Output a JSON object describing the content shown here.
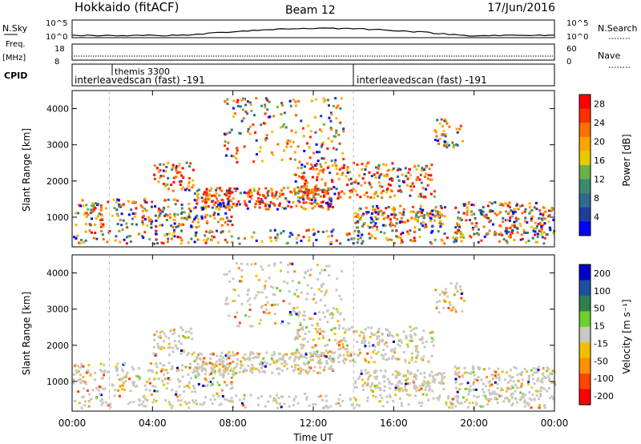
{
  "header": {
    "title": "Hokkaido (fitACF)",
    "beam": "Beam 12",
    "date": "17/Jun/2016"
  },
  "labels": {
    "nsky": "N.Sky",
    "nsearch": "N.Search",
    "freq": "Freq.",
    "freq_unit": "[MHz]",
    "nave": "Nave",
    "cpid": "CPID",
    "nsky_top": "10^5",
    "nsky_bottom": "10^0",
    "nsearch_top": "10^5",
    "nsearch_bottom": "10^0",
    "freq_top": "18",
    "freq_bottom": "8",
    "nave_top": "60",
    "nave_bottom": "0"
  },
  "cpid_segments": [
    {
      "start_hour": 0,
      "label": "interleavedscan (fast) -191"
    },
    {
      "start_hour": 1.85,
      "label": "themis 3300"
    },
    {
      "start_hour": 14.0,
      "label": "interleavedscan (fast) -191"
    }
  ],
  "colors": {
    "power": [
      "#0000ff",
      "#1f3f9f",
      "#2e6b8f",
      "#3d8a6a",
      "#6bb04a",
      "#e8c800",
      "#ffa500",
      "#ff7000",
      "#ff3000",
      "#ff0000"
    ],
    "velocity": [
      "#0000c8",
      "#1f4f9f",
      "#2f7f4f",
      "#6ccf2a",
      "#c8c8c0",
      "#f0c000",
      "#ff9000",
      "#ff4500",
      "#ff0000"
    ]
  },
  "chart_data": [
    {
      "type": "heatmap",
      "title": "Power",
      "xlabel": "Time UT",
      "ylabel": "Slant Range [km]",
      "xlim": [
        0,
        24
      ],
      "ylim": [
        180,
        4500
      ],
      "x_ticks": [
        "00:00",
        "04:00",
        "08:00",
        "12:00",
        "16:00",
        "20:00",
        "00:00"
      ],
      "y_ticks": [
        1000,
        2000,
        3000,
        4000
      ],
      "colorbar_label": "Power [dB]",
      "colorbar_ticks": [
        4,
        8,
        12,
        16,
        20,
        24,
        28
      ],
      "colorbar_range": [
        0,
        30
      ]
    },
    {
      "type": "heatmap",
      "title": "Velocity",
      "xlabel": "Time UT",
      "ylabel": "Slant Range [km]",
      "xlim": [
        0,
        24
      ],
      "ylim": [
        180,
        4500
      ],
      "x_ticks": [
        "00:00",
        "04:00",
        "08:00",
        "12:00",
        "16:00",
        "20:00",
        "00:00"
      ],
      "y_ticks": [
        1000,
        2000,
        3000,
        4000
      ],
      "colorbar_label": "Velocity [m s⁻¹]",
      "colorbar_ticks": [
        200,
        100,
        50,
        15,
        -15,
        -50,
        -100,
        -200
      ],
      "colorbar_range": [
        -250,
        250
      ]
    }
  ]
}
